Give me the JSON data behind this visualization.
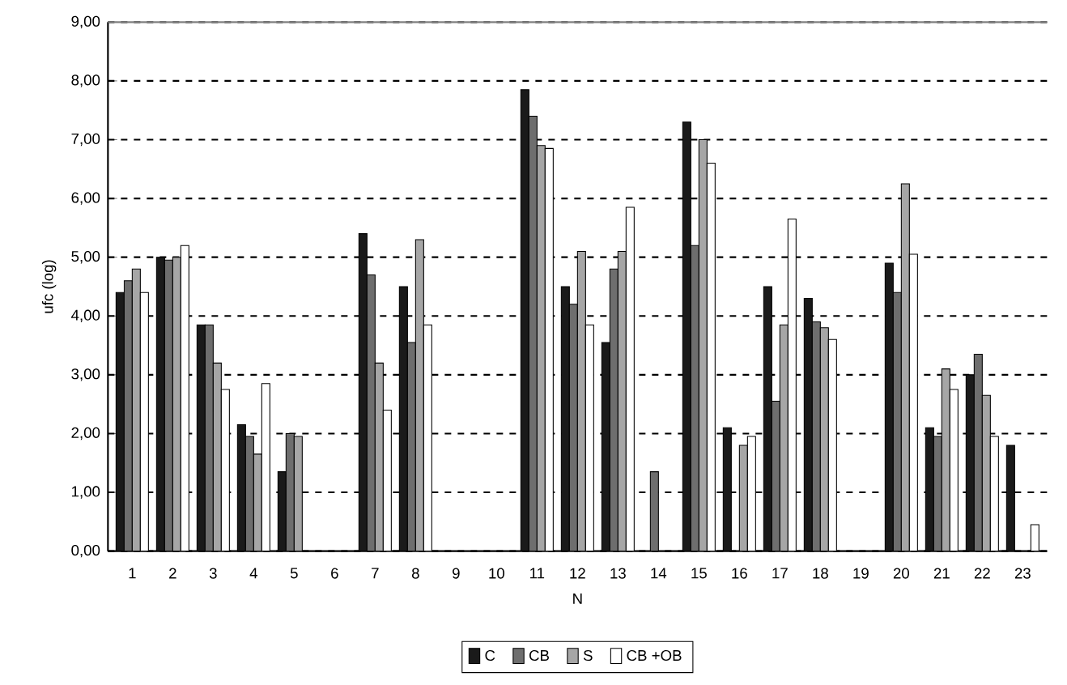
{
  "chart_data": {
    "type": "bar",
    "xlabel": "N",
    "ylabel": "ufc (log)",
    "categories": [
      "1",
      "2",
      "3",
      "4",
      "5",
      "6",
      "7",
      "8",
      "9",
      "10",
      "11",
      "12",
      "13",
      "14",
      "15",
      "16",
      "17",
      "18",
      "19",
      "20",
      "21",
      "22",
      "23"
    ],
    "series": [
      {
        "name": "C",
        "color": "#1a1a1a",
        "values": [
          4.4,
          5.0,
          3.85,
          2.15,
          1.35,
          null,
          5.4,
          4.5,
          null,
          null,
          7.85,
          4.5,
          3.55,
          null,
          7.3,
          2.1,
          4.5,
          4.3,
          null,
          4.9,
          2.1,
          3.0,
          1.8
        ]
      },
      {
        "name": "CB",
        "color": "#6e6e6e",
        "values": [
          4.6,
          4.95,
          3.85,
          1.95,
          2.0,
          null,
          4.7,
          3.55,
          null,
          null,
          7.4,
          4.2,
          4.8,
          1.35,
          5.2,
          null,
          2.55,
          3.9,
          null,
          4.4,
          1.95,
          3.35,
          null
        ]
      },
      {
        "name": "S",
        "color": "#a6a6a6",
        "values": [
          4.8,
          5.0,
          3.2,
          1.65,
          1.95,
          null,
          3.2,
          5.3,
          null,
          null,
          6.9,
          5.1,
          5.1,
          null,
          7.0,
          1.8,
          3.85,
          3.8,
          null,
          6.25,
          3.1,
          2.65,
          null
        ]
      },
      {
        "name": "CB +OB",
        "color": "#ffffff",
        "values": [
          4.4,
          5.2,
          2.75,
          2.85,
          null,
          null,
          2.4,
          3.85,
          null,
          null,
          6.85,
          3.85,
          5.85,
          null,
          6.6,
          1.95,
          5.65,
          3.6,
          null,
          5.05,
          2.75,
          1.95,
          0.45
        ]
      }
    ],
    "ylim": [
      0,
      9
    ],
    "yticks": [
      {
        "value": 0,
        "label": "0,00"
      },
      {
        "value": 1,
        "label": "1,00"
      },
      {
        "value": 2,
        "label": "2,00"
      },
      {
        "value": 3,
        "label": "3,00"
      },
      {
        "value": 4,
        "label": "4,00"
      },
      {
        "value": 5,
        "label": "5,00"
      },
      {
        "value": 6,
        "label": "6,00"
      },
      {
        "value": 7,
        "label": "7,00"
      },
      {
        "value": 8,
        "label": "8,00"
      },
      {
        "value": 9,
        "label": "9,00"
      }
    ],
    "grid": "y",
    "legend": "bottom"
  }
}
